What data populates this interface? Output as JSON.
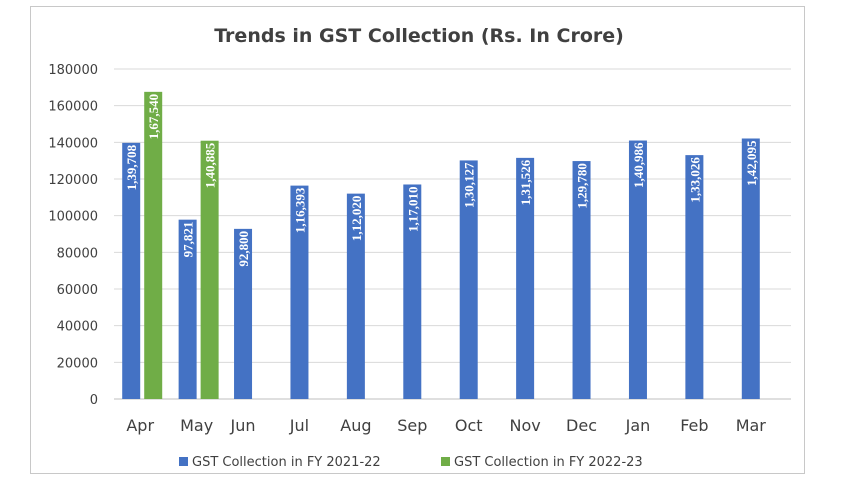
{
  "chart_data": {
    "type": "bar",
    "title": "Trends in GST Collection (Rs. In Crore)",
    "xlabel": "",
    "ylabel": "",
    "ylim": [
      0,
      180000
    ],
    "yticks": [
      0,
      20000,
      40000,
      60000,
      80000,
      100000,
      120000,
      140000,
      160000,
      180000
    ],
    "tick_labels": [
      "0",
      "20000",
      "40000",
      "60000",
      "80000",
      "100000",
      "120000",
      "140000",
      "160000",
      "180000"
    ],
    "grid": true,
    "legend_position": "bottom",
    "categories": [
      "Apr",
      "May",
      "Jun",
      "Jul",
      "Aug",
      "Sep",
      "Oct",
      "Nov",
      "Dec",
      "Jan",
      "Feb",
      "Mar"
    ],
    "series": [
      {
        "name": "GST Collection in FY 2021-22",
        "color": "#4472c4",
        "values": [
          139708,
          97821,
          92800,
          116393,
          112020,
          117010,
          130127,
          131526,
          129780,
          140986,
          133026,
          142095
        ],
        "labels": [
          "1,39,708",
          "97,821",
          "92,800",
          "1,16,393",
          "1,12,020",
          "1,17,010",
          "1,30,127",
          "1,31,526",
          "1,29,780",
          "1,40,986",
          "1,33,026",
          "1,42,095"
        ]
      },
      {
        "name": "GST Collection in FY 2022-23",
        "color": "#70ad47",
        "values": [
          167540,
          140885,
          null,
          null,
          null,
          null,
          null,
          null,
          null,
          null,
          null,
          null
        ],
        "labels": [
          "1,67,540",
          "1,40,885",
          null,
          null,
          null,
          null,
          null,
          null,
          null,
          null,
          null,
          null
        ]
      }
    ]
  }
}
